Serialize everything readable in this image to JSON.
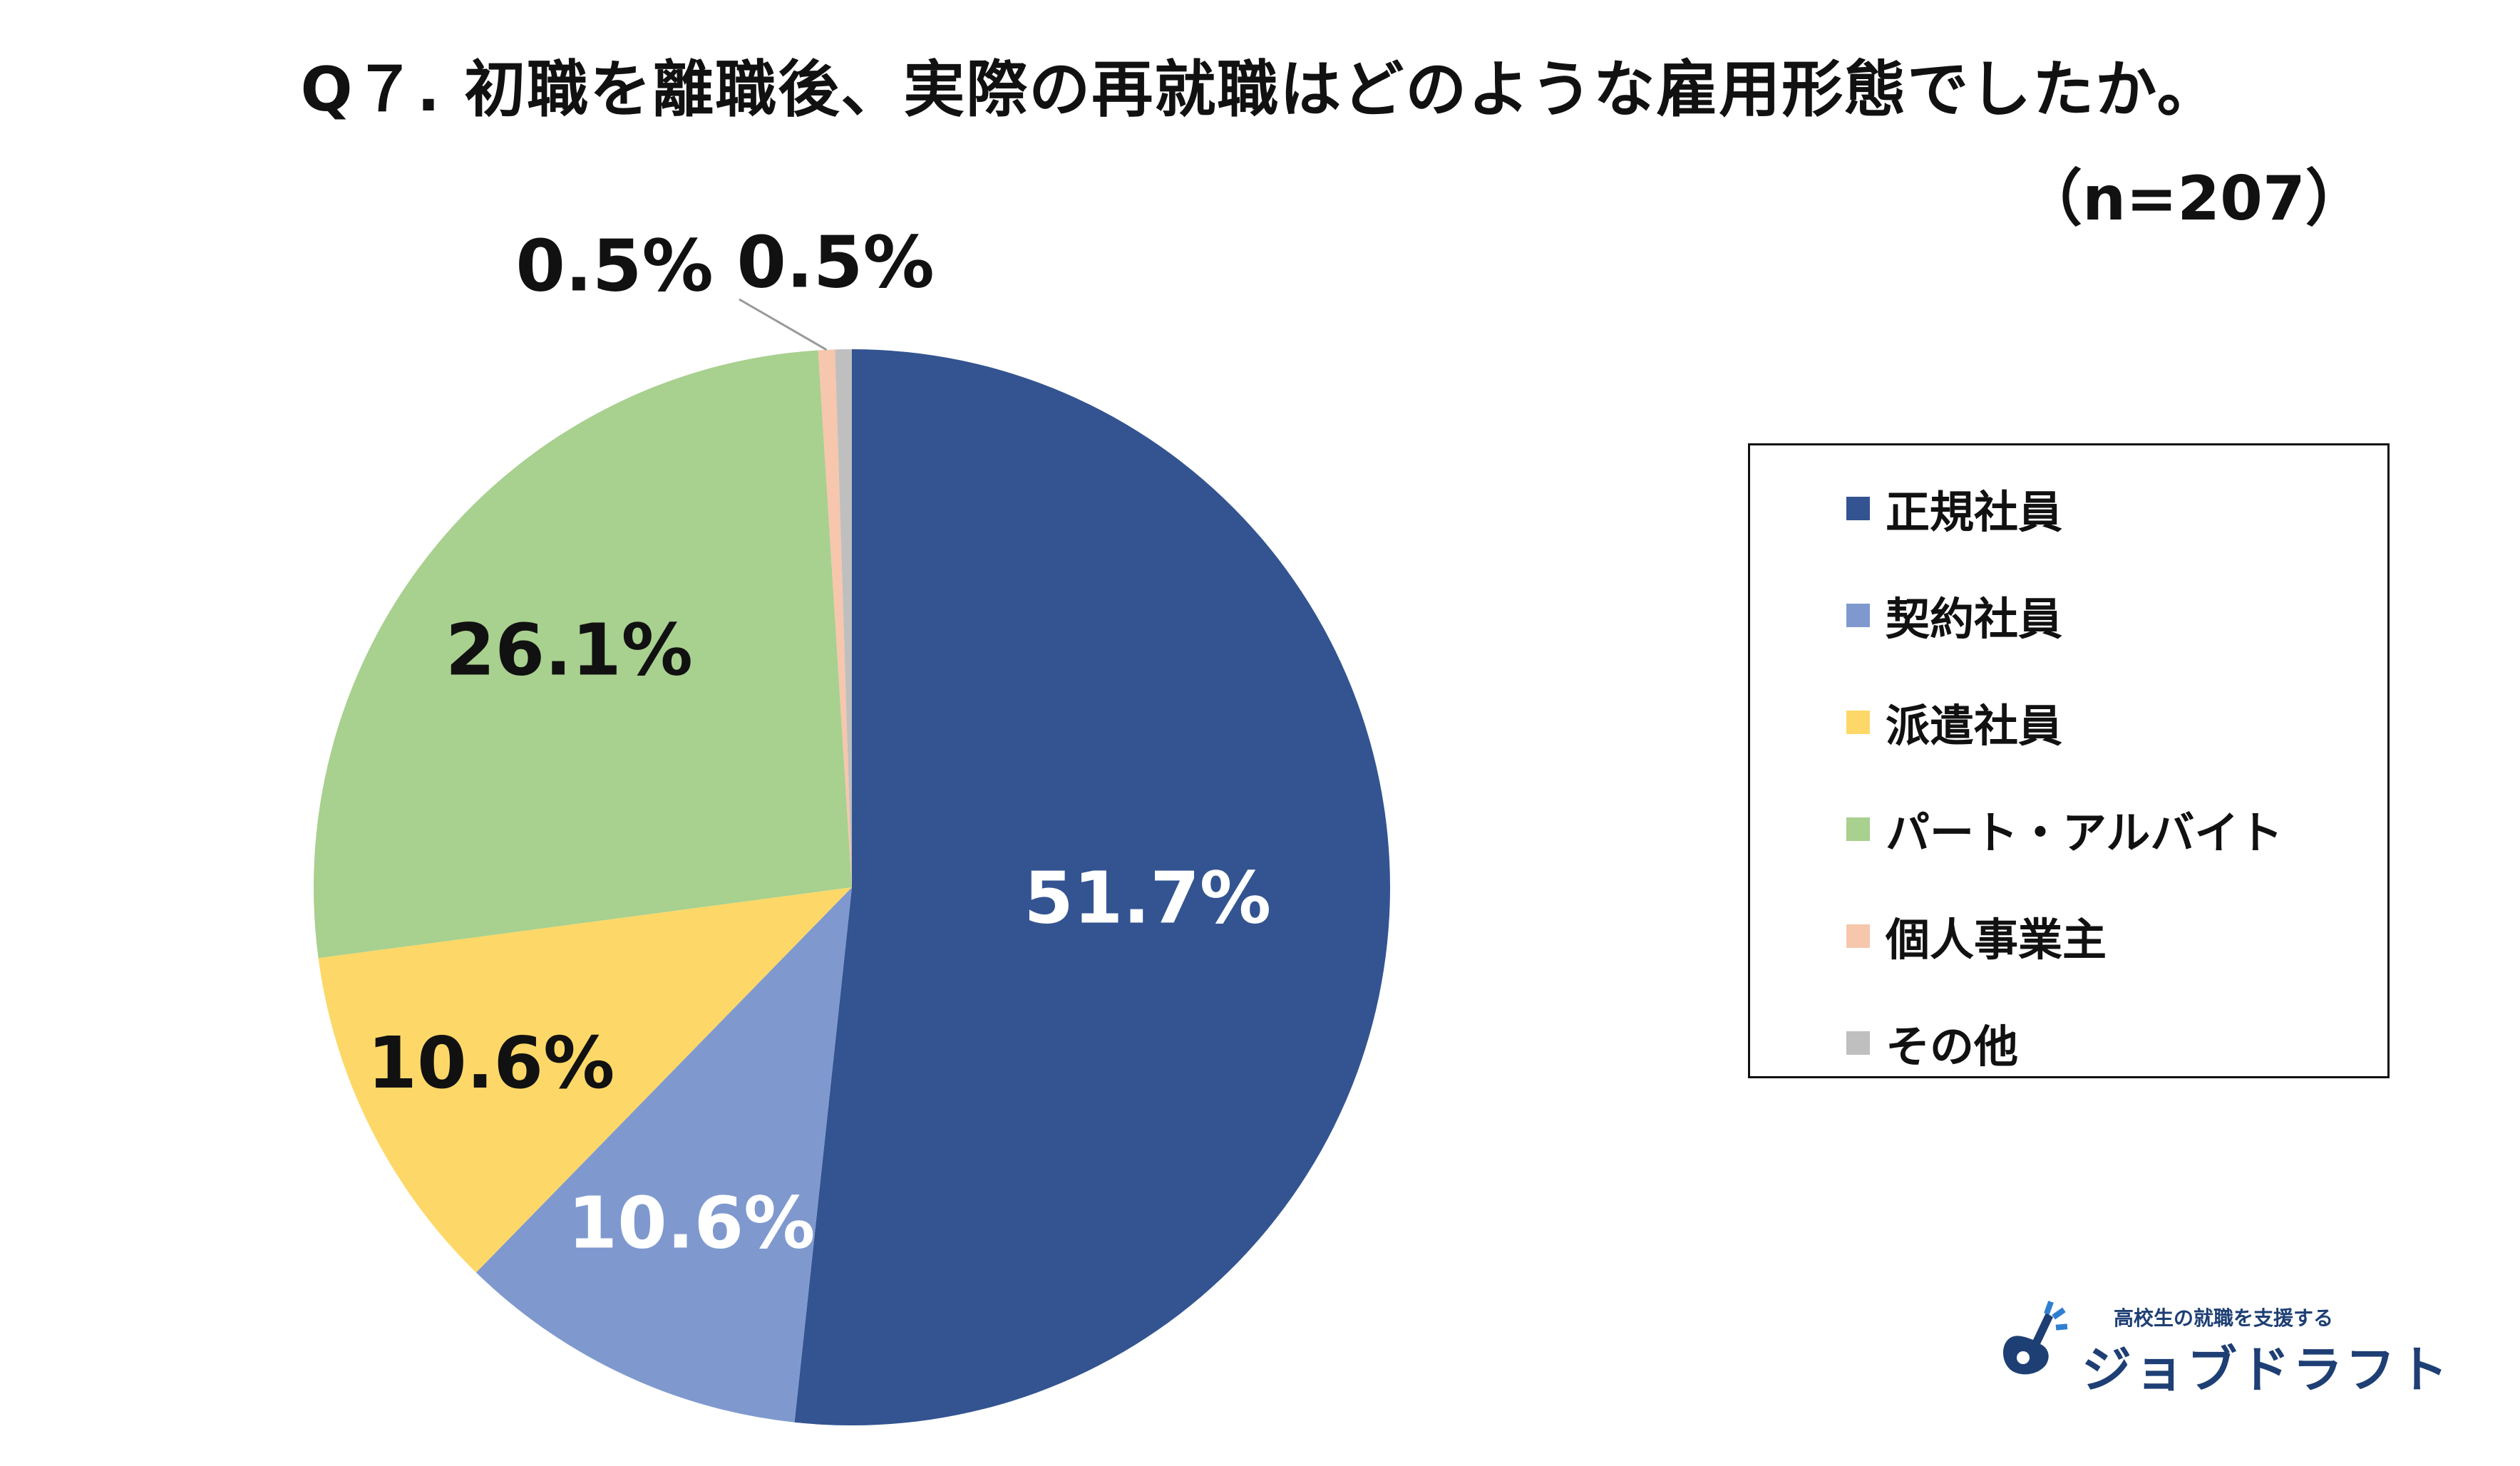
{
  "chart_data": {
    "type": "pie",
    "title": "Q７. 初職を離職後、実際の再就職はどのような雇用形態でしたか。",
    "subtitle": "（n=207）",
    "categories": [
      "正規社員",
      "契約社員",
      "派遣社員",
      "パート・アルバイト",
      "個人事業主",
      "その他"
    ],
    "values": [
      51.7,
      10.6,
      10.6,
      26.1,
      0.5,
      0.5
    ],
    "data_labels": [
      "51.7%",
      "10.6%",
      "10.6%",
      "26.1%",
      "0.5%",
      "0.5%"
    ],
    "colors": [
      "#335491",
      "#7f99cf",
      "#fdd868",
      "#a8d08e",
      "#f6c6ad",
      "#bfbfbf"
    ],
    "label_colors": [
      "#ffffff",
      "#ffffff",
      "#111111",
      "#111111",
      "#111111",
      "#111111"
    ],
    "start_angle_deg": 0,
    "direction": "clockwise",
    "legend_position": "right"
  },
  "logo": {
    "tagline": "高校生の就職を支援する",
    "name": "ジョブドラフト",
    "brand_color": "#1e3f74",
    "icon": "guitar-icon"
  }
}
